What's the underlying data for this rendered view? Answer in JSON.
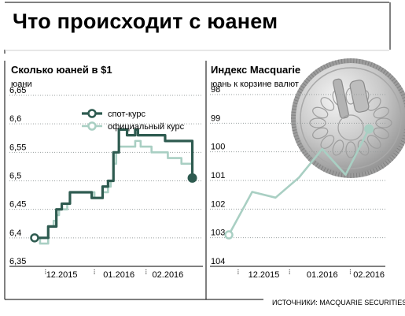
{
  "title": "Что происходит с юанем",
  "source": "ИСТОЧНИКИ: MACQUARIE SECURITIES, WSJ",
  "colors": {
    "spot": "#2e5b50",
    "official": "#a9cfc3",
    "index": "#a9cfc3",
    "grid": "#9aa0a0",
    "frame": "#000000"
  },
  "chart_data": [
    {
      "type": "line",
      "title": "Сколько юаней в $1",
      "ylabel": "юани",
      "ylim": [
        6.65,
        6.35
      ],
      "y_inverted": true,
      "yticks": [
        "6,35",
        "6,4",
        "6,45",
        "6,5",
        "6,55",
        "6,6",
        "6,65"
      ],
      "yticks_values": [
        6.35,
        6.4,
        6.45,
        6.5,
        6.55,
        6.6,
        6.65
      ],
      "xlim": [
        0,
        59
      ],
      "xticks": [
        {
          "label": "12.2015",
          "x": 10
        },
        {
          "label": "01.2016",
          "x": 31
        },
        {
          "label": "02.2016",
          "x": 49
        }
      ],
      "series": [
        {
          "name": "спот-курс",
          "x": [
            0,
            1,
            2,
            4,
            5,
            7,
            8,
            9,
            10,
            12,
            13,
            16,
            17,
            18,
            19,
            20,
            21,
            22,
            24,
            25,
            26,
            27,
            28,
            29,
            30,
            31,
            32,
            34,
            35,
            37,
            38,
            39,
            41,
            42,
            43,
            46,
            47,
            48,
            49,
            50,
            54,
            55,
            56,
            57,
            58
          ],
          "y": [
            6.4,
            6.4,
            6.4,
            6.4,
            6.42,
            6.42,
            6.45,
            6.45,
            6.46,
            6.46,
            6.48,
            6.48,
            6.48,
            6.48,
            6.48,
            6.48,
            6.47,
            6.47,
            6.47,
            6.49,
            6.49,
            6.5,
            6.5,
            6.55,
            6.55,
            6.59,
            6.59,
            6.58,
            6.58,
            6.59,
            6.58,
            6.58,
            6.58,
            6.58,
            6.58,
            6.58,
            6.58,
            6.57,
            6.57,
            6.57,
            6.57,
            6.57,
            6.57,
            6.57,
            6.505
          ],
          "marker_start": true,
          "marker_end": true
        },
        {
          "name": "официальный курс",
          "x": [
            0,
            1,
            2,
            3,
            4,
            5,
            7,
            8,
            9,
            10,
            12,
            13,
            16,
            17,
            18,
            19,
            20,
            21,
            22,
            24,
            25,
            26,
            27,
            28,
            29,
            30,
            31,
            32,
            34,
            35,
            37,
            38,
            39,
            41,
            42,
            43,
            45,
            46,
            47,
            48,
            49,
            50,
            54,
            55,
            56,
            57,
            58
          ],
          "y": [
            6.4,
            6.4,
            6.39,
            6.39,
            6.39,
            6.42,
            6.43,
            6.44,
            6.45,
            6.45,
            6.46,
            6.48,
            6.48,
            6.48,
            6.48,
            6.48,
            6.48,
            6.48,
            6.47,
            6.47,
            6.48,
            6.48,
            6.49,
            6.5,
            6.53,
            6.55,
            6.56,
            6.56,
            6.56,
            6.56,
            6.57,
            6.57,
            6.56,
            6.56,
            6.56,
            6.55,
            6.55,
            6.55,
            6.55,
            6.55,
            6.54,
            6.54,
            6.53,
            6.53,
            6.53,
            6.53,
            6.53
          ]
        }
      ],
      "legend": [
        {
          "label": "спот-курс",
          "series": 0
        },
        {
          "label": "официальный курс",
          "series": 1
        }
      ]
    },
    {
      "type": "line",
      "title": "Индекс Macquarie",
      "ylabel": "юань к корзине валют",
      "ylim": [
        98,
        104
      ],
      "yticks": [
        "104",
        "103",
        "102",
        "101",
        "100",
        "99",
        "98"
      ],
      "yticks_values": [
        104,
        103,
        102,
        101,
        100,
        99,
        98
      ],
      "xlim": [
        0,
        6.5
      ],
      "xticks": [
        {
          "label": "12.2015",
          "x": 1.5
        },
        {
          "label": "01.2016",
          "x": 4
        },
        {
          "label": "02.2016",
          "x": 6
        }
      ],
      "series": [
        {
          "name": "",
          "x": [
            0,
            1,
            2,
            3,
            4,
            5,
            6
          ],
          "y": [
            102.9,
            101.4,
            101.6,
            100.9,
            99.9,
            100.8,
            99.2
          ],
          "marker_start": true,
          "marker_end": true
        }
      ]
    }
  ]
}
